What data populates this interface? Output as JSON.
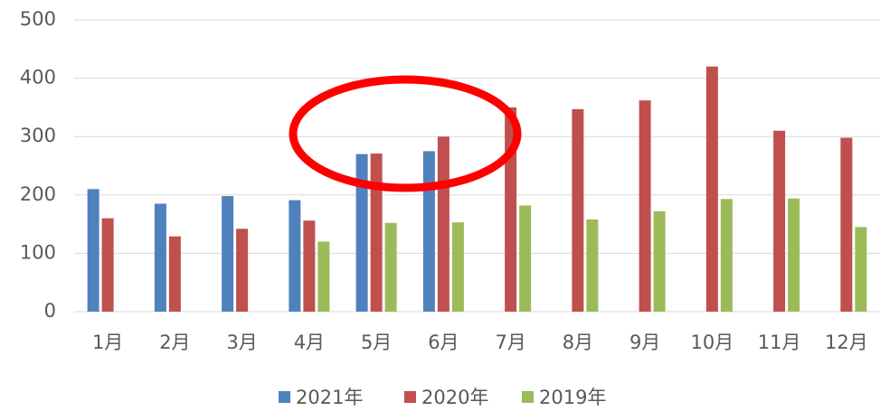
{
  "chart_data": {
    "type": "bar",
    "categories": [
      "1月",
      "2月",
      "3月",
      "4月",
      "5月",
      "6月",
      "7月",
      "8月",
      "9月",
      "10月",
      "11月",
      "12月"
    ],
    "series": [
      {
        "name": "2021年",
        "color": "#4f81bd",
        "values": [
          210,
          185,
          198,
          191,
          270,
          275,
          null,
          null,
          null,
          null,
          null,
          null
        ]
      },
      {
        "name": "2020年",
        "color": "#c0504d",
        "values": [
          160,
          129,
          142,
          156,
          271,
          300,
          350,
          347,
          362,
          420,
          310,
          298
        ]
      },
      {
        "name": "2019年",
        "color": "#9bbb59",
        "values": [
          null,
          null,
          null,
          120,
          152,
          153,
          182,
          158,
          172,
          193,
          194,
          145
        ]
      }
    ],
    "ylim": [
      0,
      500
    ],
    "yticks": [
      0,
      100,
      200,
      300,
      400,
      500
    ],
    "grid": true,
    "legend": "bottom"
  }
}
